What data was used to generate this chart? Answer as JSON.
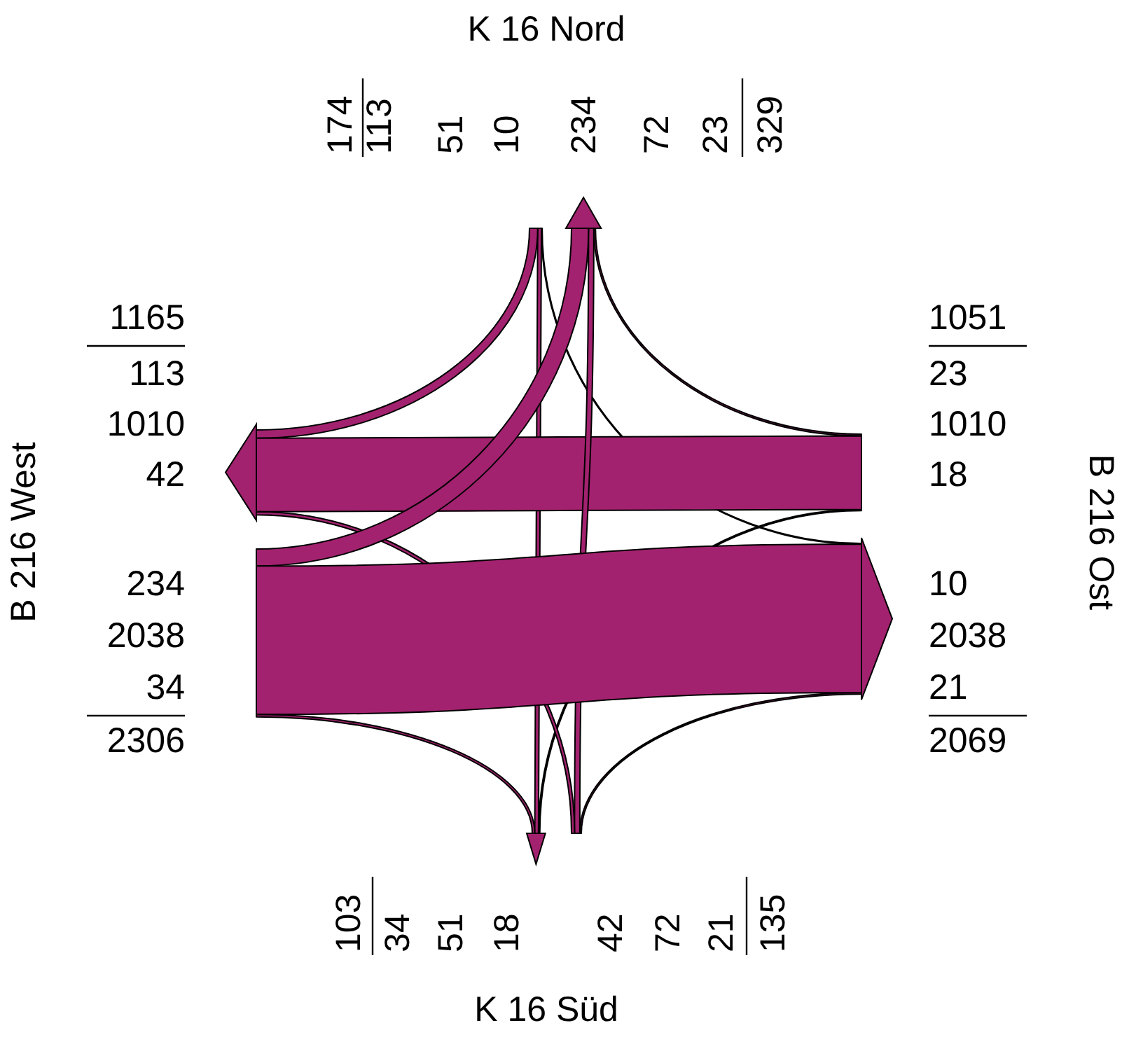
{
  "chart_data": {
    "type": "other",
    "categories": [
      "K 16 Nord",
      "B 216 Ost",
      "K 16 Süd",
      "B 216 West"
    ],
    "data_labels": true,
    "annotations": [
      "234",
      "72",
      "23",
      "10",
      "2038",
      "21",
      "34",
      "51",
      "18",
      "113",
      "1010",
      "42"
    ],
    "series": [
      {
        "values": [
          null,
          10,
          51,
          113
        ]
      },
      {
        "values": [
          23,
          null,
          18,
          1010
        ]
      },
      {
        "values": [
          72,
          21,
          null,
          42
        ]
      },
      {
        "values": [
          234,
          2038,
          34,
          null
        ]
      }
    ],
    "totals": [
      [
        "174",
        "329"
      ],
      [
        "1051",
        "2069"
      ],
      [
        "135",
        "103"
      ],
      [
        "2306",
        "1165"
      ]
    ],
    "color": "#a2226f"
  }
}
